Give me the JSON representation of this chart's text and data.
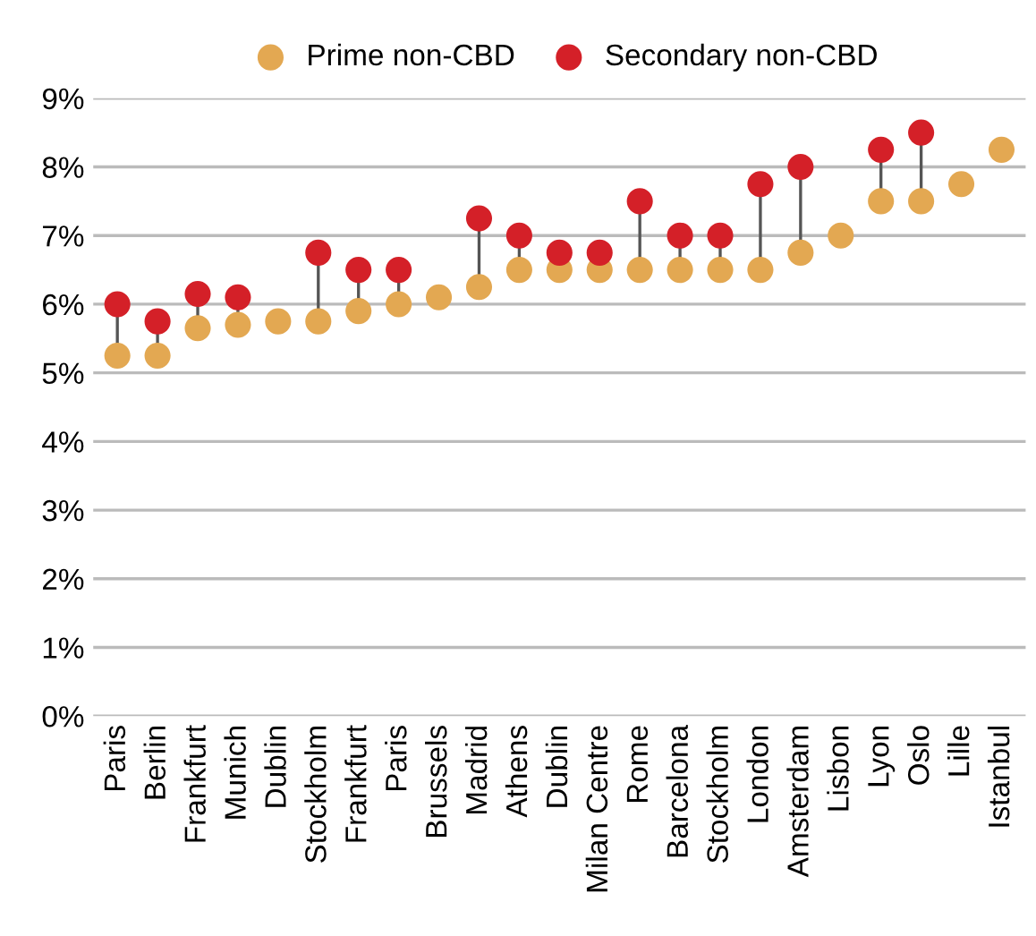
{
  "chart_data": {
    "type": "scatter",
    "categories": [
      "Paris",
      "Berlin",
      "Frankfurt",
      "Munich",
      "Dublin",
      "Stockholm",
      "Frankfurt",
      "Paris",
      "Brussels",
      "Madrid",
      "Athens",
      "Dublin",
      "Milan Centre",
      "Rome",
      "Barcelona",
      "Stockholm",
      "London",
      "Amsterdam",
      "Lisbon",
      "Lyon",
      "Oslo",
      "Lille",
      "Istanbul"
    ],
    "series": [
      {
        "name": "Prime non-CBD",
        "color": "#e3a852",
        "values": [
          5.25,
          5.25,
          5.65,
          5.7,
          5.75,
          5.75,
          5.9,
          6.0,
          6.1,
          6.25,
          6.5,
          6.5,
          6.5,
          6.5,
          6.5,
          6.5,
          6.5,
          6.75,
          7.0,
          7.5,
          7.5,
          7.75,
          8.25
        ]
      },
      {
        "name": "Secondary non-CBD",
        "color": "#d42028",
        "values": [
          6.0,
          5.75,
          6.15,
          6.1,
          null,
          6.75,
          6.5,
          6.5,
          null,
          7.25,
          7.0,
          6.75,
          6.75,
          7.5,
          7.0,
          7.0,
          7.75,
          8.0,
          null,
          8.25,
          8.5,
          null,
          null
        ]
      }
    ],
    "ylim": [
      0,
      9
    ],
    "yticks": [
      {
        "value": 0,
        "label": "0%"
      },
      {
        "value": 1,
        "label": "1%"
      },
      {
        "value": 2,
        "label": "2%"
      },
      {
        "value": 3,
        "label": "3%"
      },
      {
        "value": 4,
        "label": "4%"
      },
      {
        "value": 5,
        "label": "5%"
      },
      {
        "value": 6,
        "label": "6%"
      },
      {
        "value": 7,
        "label": "7%"
      },
      {
        "value": 8,
        "label": "8%"
      },
      {
        "value": 9,
        "label": "9%"
      }
    ],
    "grid": "y",
    "legend": "top",
    "marker": "circle"
  }
}
